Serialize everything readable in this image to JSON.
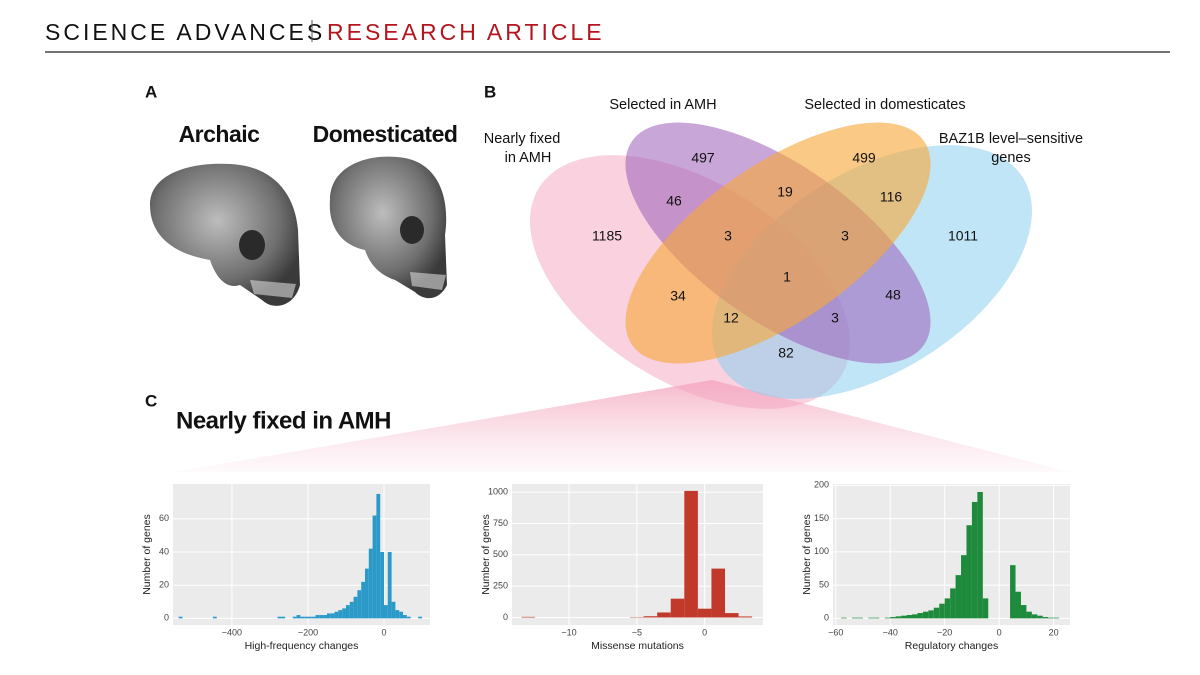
{
  "header": {
    "journal": "SCIENCE ADVANCES",
    "section": "RESEARCH ARTICLE"
  },
  "panel_a": {
    "label": "A",
    "captions": [
      "Archaic",
      "Domesticated"
    ]
  },
  "panel_b": {
    "label": "B",
    "sets": [
      {
        "lines": [
          "Nearly fixed",
          "in AMH"
        ],
        "color": "#f4a3bf"
      },
      {
        "lines": [
          "Selected in AMH"
        ],
        "color": "#9b5fb8"
      },
      {
        "lines": [
          "Selected in domesticates"
        ],
        "color": "#f7a83a"
      },
      {
        "lines": [
          "BAZ1B level–sensitive",
          "genes"
        ],
        "color": "#8ccfee"
      }
    ],
    "regions": [
      1185,
      497,
      499,
      1011,
      46,
      19,
      116,
      3,
      3,
      1,
      34,
      48,
      12,
      3,
      82
    ]
  },
  "panel_c": {
    "label": "C",
    "title": "Nearly fixed in AMH"
  },
  "chart_data": [
    {
      "type": "histogram",
      "xlabel": "High-frequency changes",
      "ylabel": "Number of genes",
      "color": "#2b9ac9",
      "grid": true,
      "xlim": [
        -555,
        121
      ],
      "ylim": [
        -4,
        81
      ],
      "xticks": [
        {
          "value": -400,
          "label": "−400"
        },
        {
          "value": -200,
          "label": "−200"
        },
        0
      ],
      "yticks": [
        0,
        20,
        40,
        60
      ],
      "bins": [
        -540,
        -530,
        -520,
        -510,
        -500,
        -490,
        -480,
        -470,
        -460,
        -450,
        -440,
        -430,
        -420,
        -410,
        -400,
        -390,
        -380,
        -370,
        -360,
        -350,
        -340,
        -330,
        -320,
        -310,
        -300,
        -290,
        -280,
        -270,
        -260,
        -250,
        -240,
        -230,
        -220,
        -210,
        -200,
        -190,
        -180,
        -170,
        -160,
        -150,
        -140,
        -130,
        -120,
        -110,
        -100,
        -90,
        -80,
        -70,
        -60,
        -50,
        -40,
        -30,
        -20,
        -10,
        0,
        10,
        20,
        30,
        40,
        50,
        60,
        70,
        80,
        90,
        100,
        110
      ],
      "counts": [
        1,
        0,
        0,
        0,
        0,
        0,
        0,
        0,
        0,
        1,
        0,
        0,
        0,
        0,
        0,
        0,
        0,
        0,
        0,
        0,
        0,
        0,
        0,
        0,
        0,
        0,
        1,
        1,
        0,
        0,
        1,
        2,
        1,
        1,
        1,
        1,
        2,
        2,
        2,
        3,
        3,
        4,
        5,
        6,
        8,
        10,
        13,
        17,
        22,
        30,
        42,
        62,
        75,
        40,
        8,
        40,
        10,
        5,
        4,
        2,
        1,
        0,
        0,
        1,
        0
      ]
    },
    {
      "type": "histogram",
      "xlabel": "Missense mutations",
      "ylabel": "Number of genes",
      "color": "#c0392b",
      "grid": true,
      "xlim": [
        -14.2,
        4.3
      ],
      "ylim": [
        -60,
        1065
      ],
      "xticks": [
        {
          "value": -10,
          "label": "−10"
        },
        {
          "value": -5,
          "label": "−5"
        },
        0
      ],
      "yticks": [
        0,
        250,
        500,
        750,
        1000
      ],
      "bins": [
        -13.5,
        -12.5,
        -11.5,
        -10.5,
        -9.5,
        -8.5,
        -7.5,
        -6.5,
        -5.5,
        -4.5,
        -3.5,
        -2.5,
        -1.5,
        -0.5,
        0.5,
        1.5,
        2.5,
        3.5
      ],
      "counts": [
        5,
        0,
        0,
        0,
        0,
        0,
        0,
        0,
        3,
        10,
        40,
        150,
        1010,
        70,
        390,
        35,
        8
      ]
    },
    {
      "type": "histogram",
      "xlabel": "Regulatory changes",
      "ylabel": "Number of genes",
      "color": "#1e8a3c",
      "grid": true,
      "xlim": [
        -61,
        26
      ],
      "ylim": [
        -10,
        202
      ],
      "xticks": [
        {
          "value": -60,
          "label": "−60"
        },
        {
          "value": -40,
          "label": "−40"
        },
        {
          "value": -20,
          "label": "−20"
        },
        0,
        20
      ],
      "yticks": [
        0,
        50,
        100,
        150,
        200
      ],
      "bins": [
        -58,
        -56,
        -54,
        -52,
        -50,
        -48,
        -46,
        -44,
        -42,
        -40,
        -38,
        -36,
        -34,
        -32,
        -30,
        -28,
        -26,
        -24,
        -22,
        -20,
        -18,
        -16,
        -14,
        -12,
        -10,
        -8,
        -6,
        -4,
        -2,
        0,
        2,
        4,
        6,
        8,
        10,
        12,
        14,
        16,
        18,
        20,
        22
      ],
      "counts": [
        1,
        0,
        1,
        1,
        0,
        1,
        1,
        0,
        1,
        2,
        3,
        4,
        5,
        6,
        8,
        10,
        12,
        16,
        22,
        30,
        45,
        65,
        95,
        140,
        175,
        190,
        30,
        0,
        0,
        0,
        0,
        80,
        40,
        20,
        10,
        6,
        4,
        2,
        1,
        1
      ]
    }
  ]
}
